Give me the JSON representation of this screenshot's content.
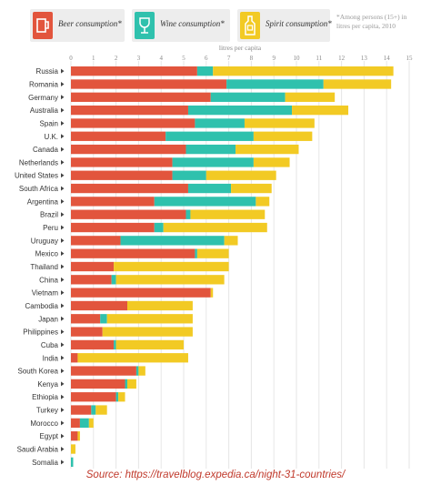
{
  "legend": {
    "beer": {
      "label": "Beer consumption*",
      "color": "#e2553d",
      "icon": "beer-mug-icon"
    },
    "wine": {
      "label": "Wine consumption*",
      "color": "#2fc1ad",
      "icon": "wine-glass-icon"
    },
    "spirit": {
      "label": "Spirit consumption*",
      "color": "#f2ca24",
      "icon": "spirit-bottle-icon"
    },
    "note": "*Among persons (15+) in litres per capita, 2010"
  },
  "source": "Source: https://travelblog.expedia.ca/night-31-countries/",
  "chart_data": {
    "type": "bar",
    "orientation": "horizontal",
    "stacked": true,
    "xlabel": "litres per capita",
    "xlim": [
      0,
      15
    ],
    "xticks": [
      0,
      1,
      2,
      3,
      4,
      5,
      6,
      7,
      8,
      9,
      10,
      11,
      12,
      13,
      14,
      15
    ],
    "grid": true,
    "categories": [
      "Russia",
      "Romania",
      "Germany",
      "Australia",
      "Spain",
      "U.K.",
      "Canada",
      "Netherlands",
      "United States",
      "South Africa",
      "Argentina",
      "Brazil",
      "Peru",
      "Uruguay",
      "Mexico",
      "Thailand",
      "China",
      "Vietnam",
      "Cambodia",
      "Japan",
      "Philippines",
      "Cuba",
      "India",
      "South Korea",
      "Kenya",
      "Ethiopia",
      "Turkey",
      "Morocco",
      "Egypt",
      "Saudi Arabia",
      "Somalia"
    ],
    "series": [
      {
        "name": "Beer consumption*",
        "color": "#e2553d",
        "values": [
          5.6,
          6.9,
          6.2,
          5.2,
          5.5,
          4.2,
          5.1,
          4.5,
          4.5,
          5.2,
          3.7,
          5.1,
          3.7,
          2.2,
          5.5,
          1.9,
          1.8,
          6.2,
          2.5,
          1.3,
          1.4,
          1.9,
          0.3,
          2.9,
          2.4,
          2.0,
          0.9,
          0.4,
          0.3,
          0.0,
          0.0
        ]
      },
      {
        "name": "Wine consumption*",
        "color": "#2fc1ad",
        "values": [
          0.7,
          4.3,
          3.3,
          4.6,
          2.2,
          3.9,
          2.2,
          3.6,
          1.5,
          1.9,
          4.5,
          0.2,
          0.4,
          4.6,
          0.1,
          0.0,
          0.2,
          0.0,
          0.0,
          0.3,
          0.0,
          0.1,
          0.0,
          0.1,
          0.1,
          0.1,
          0.2,
          0.4,
          0.0,
          0.0,
          0.1
        ]
      },
      {
        "name": "Spirit consumption*",
        "color": "#f2ca24",
        "values": [
          8.0,
          3.0,
          2.2,
          2.5,
          3.1,
          2.6,
          2.8,
          1.6,
          3.1,
          1.8,
          0.6,
          3.3,
          4.6,
          0.6,
          1.4,
          5.1,
          4.8,
          0.1,
          2.9,
          3.8,
          4.0,
          3.0,
          4.9,
          0.3,
          0.4,
          0.3,
          0.5,
          0.2,
          0.1,
          0.2,
          0.0
        ]
      }
    ]
  }
}
